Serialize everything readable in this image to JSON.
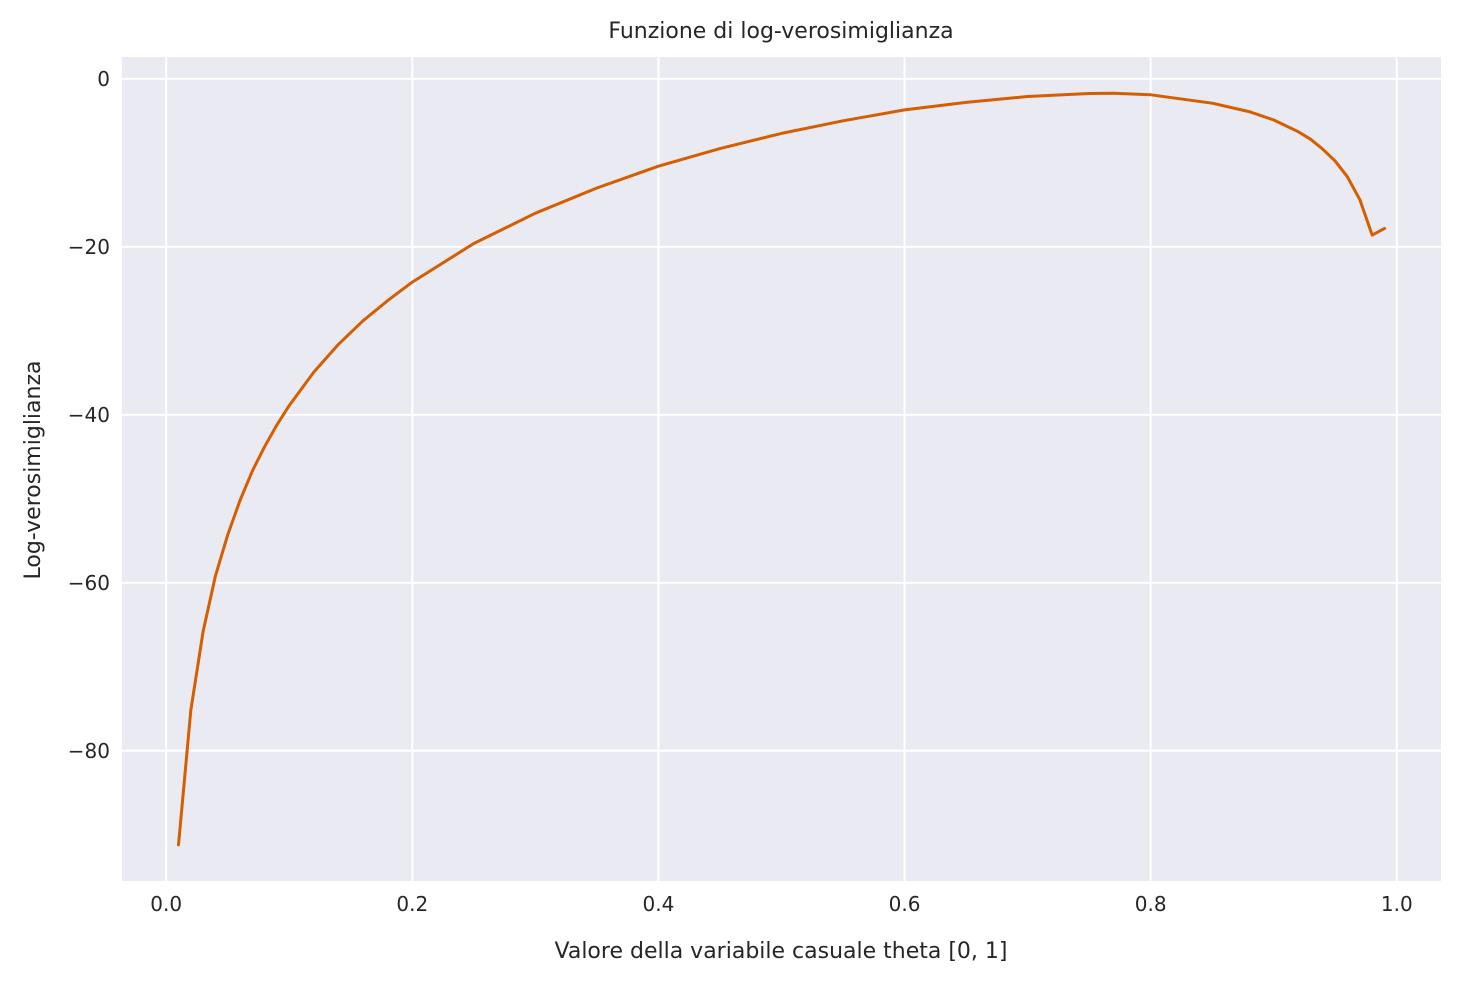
{
  "chart_data": {
    "type": "line",
    "title": "Funzione di log-verosimiglianza",
    "xlabel": "Valore della variabile casuale theta [0, 1]",
    "ylabel": "Log-verosimiglianza",
    "xlim": [
      -0.0359,
      1.0359
    ],
    "ylim": [
      -95.5,
      2.6
    ],
    "grid": true,
    "legend": "none",
    "colors": {
      "background": "#EAEAF2",
      "grid": "#FFFFFF",
      "line": "#D55E00",
      "text": "#262626"
    },
    "xticks": [
      {
        "value": 0.0,
        "label": "0.0"
      },
      {
        "value": 0.2,
        "label": "0.2"
      },
      {
        "value": 0.4,
        "label": "0.4"
      },
      {
        "value": 0.6,
        "label": "0.6"
      },
      {
        "value": 0.8,
        "label": "0.8"
      },
      {
        "value": 1.0,
        "label": "1.0"
      }
    ],
    "yticks": [
      {
        "value": 0,
        "label": "0"
      },
      {
        "value": -20,
        "label": "−20"
      },
      {
        "value": -40,
        "label": "−40"
      },
      {
        "value": -60,
        "label": "−60"
      },
      {
        "value": -80,
        "label": "−80"
      }
    ],
    "series": [
      {
        "x": [
          0.01,
          0.02,
          0.03,
          0.04,
          0.05,
          0.06,
          0.07,
          0.08,
          0.09,
          0.1,
          0.12,
          0.14,
          0.16,
          0.18,
          0.2,
          0.25,
          0.3,
          0.35,
          0.4,
          0.45,
          0.5,
          0.55,
          0.6,
          0.65,
          0.7,
          0.75,
          0.77,
          0.8,
          0.85,
          0.88,
          0.9,
          0.92,
          0.93,
          0.94,
          0.95,
          0.96,
          0.97,
          0.98,
          0.99
        ],
        "y": [
          -91.2,
          -75.2,
          -65.8,
          -59.2,
          -54.3,
          -50.2,
          -46.7,
          -43.8,
          -41.2,
          -38.9,
          -34.9,
          -31.6,
          -28.8,
          -26.4,
          -24.2,
          -19.6,
          -16.0,
          -13.0,
          -10.4,
          -8.3,
          -6.5,
          -5.0,
          -3.7,
          -2.8,
          -2.1,
          -1.75,
          -1.72,
          -1.9,
          -2.9,
          -3.9,
          -4.9,
          -6.3,
          -7.2,
          -8.4,
          -9.8,
          -11.7,
          -14.4,
          -18.6,
          -17.8
        ]
      }
    ]
  }
}
